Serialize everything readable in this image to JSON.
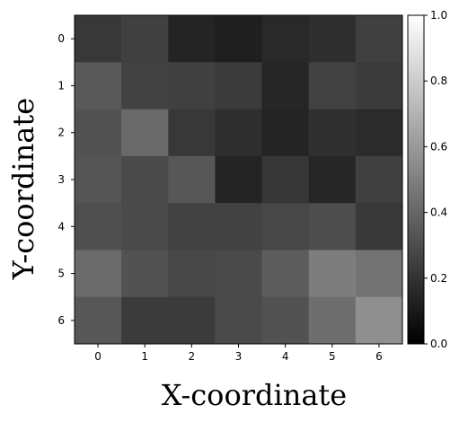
{
  "chart_data": {
    "type": "heatmap",
    "title": "",
    "xlabel": "X-coordinate",
    "ylabel": "Y-coordinate",
    "x": [
      "0",
      "1",
      "2",
      "3",
      "4",
      "5",
      "6"
    ],
    "y": [
      "0",
      "1",
      "2",
      "3",
      "4",
      "5",
      "6"
    ],
    "values": [
      [
        0.22,
        0.25,
        0.14,
        0.12,
        0.16,
        0.18,
        0.25
      ],
      [
        0.35,
        0.26,
        0.25,
        0.23,
        0.15,
        0.26,
        0.23
      ],
      [
        0.32,
        0.41,
        0.22,
        0.18,
        0.14,
        0.19,
        0.17
      ],
      [
        0.33,
        0.29,
        0.34,
        0.14,
        0.21,
        0.15,
        0.25
      ],
      [
        0.31,
        0.29,
        0.26,
        0.26,
        0.28,
        0.3,
        0.22
      ],
      [
        0.42,
        0.32,
        0.28,
        0.29,
        0.36,
        0.49,
        0.45
      ],
      [
        0.34,
        0.23,
        0.23,
        0.29,
        0.32,
        0.43,
        0.56
      ]
    ],
    "colorbar": {
      "min": 0.0,
      "max": 1.0,
      "ticks": [
        "0.0",
        "0.2",
        "0.4",
        "0.6",
        "0.8",
        "1.0"
      ],
      "colormap": "gray",
      "color_low": "#000000",
      "color_high": "#ffffff"
    },
    "grid": false
  }
}
